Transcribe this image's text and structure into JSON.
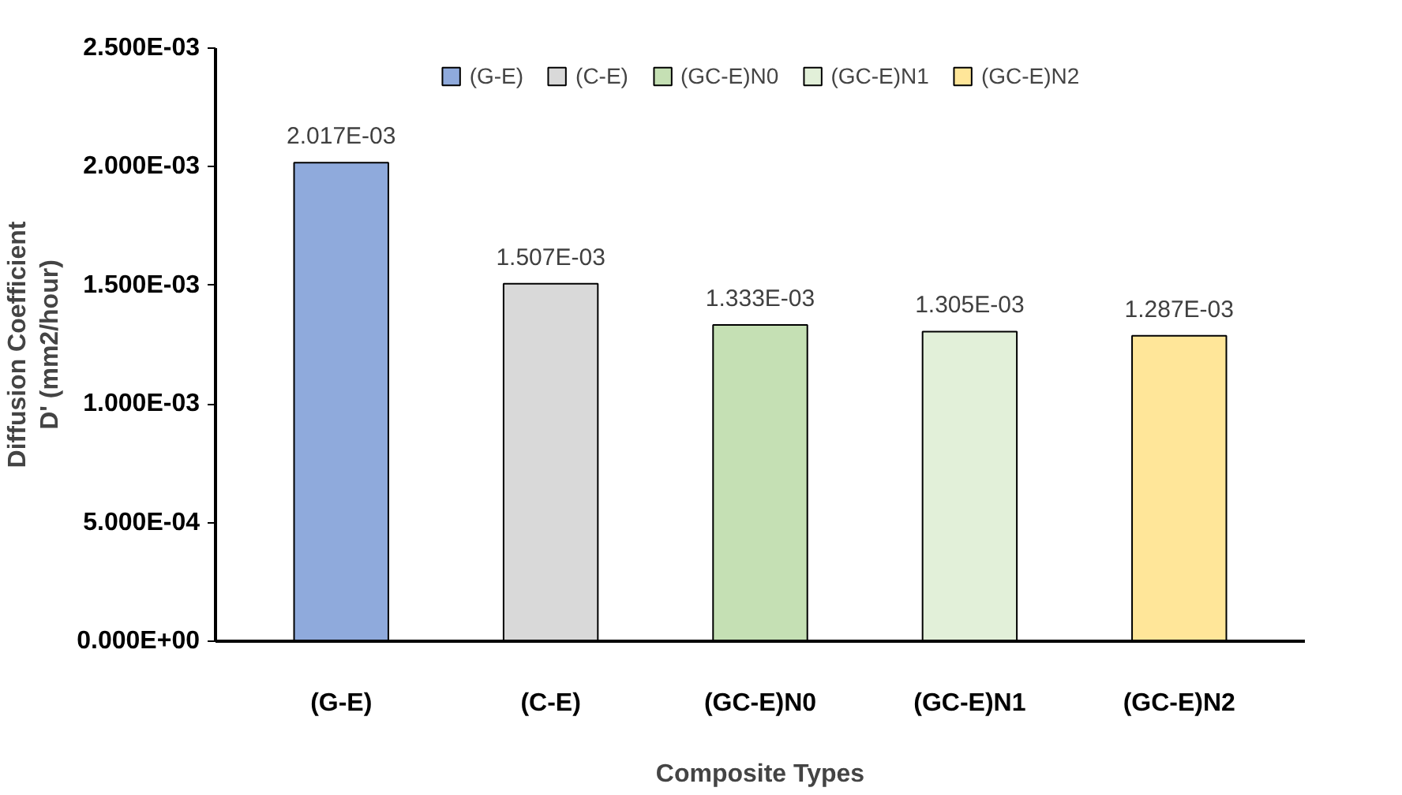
{
  "chart_data": {
    "type": "bar",
    "stacked": true,
    "categories": [
      "(G-E)",
      "(C-E)",
      "(GC-E)N0",
      "(GC-E)N1",
      "(GC-E)N2"
    ],
    "series": [
      {
        "name": "(G-E)",
        "color": "#8faadc",
        "values": [
          0.002017,
          null,
          null,
          null,
          null
        ],
        "value_labels": [
          "2.017E-03",
          null,
          null,
          null,
          null
        ]
      },
      {
        "name": "(C-E)",
        "color": "#d9d9d9",
        "values": [
          null,
          0.001507,
          null,
          null,
          null
        ],
        "value_labels": [
          null,
          "1.507E-03",
          null,
          null,
          null
        ]
      },
      {
        "name": "(GC-E)N0",
        "color": "#c5e0b4",
        "values": [
          null,
          null,
          0.001333,
          null,
          null
        ],
        "value_labels": [
          null,
          null,
          "1.333E-03",
          null,
          null
        ]
      },
      {
        "name": "(GC-E)N1",
        "color": "#e2f0d9",
        "values": [
          null,
          null,
          null,
          0.001305,
          null
        ],
        "value_labels": [
          null,
          null,
          null,
          "1.305E-03",
          null
        ]
      },
      {
        "name": "(GC-E)N2",
        "color": "#ffe699",
        "values": [
          null,
          null,
          null,
          null,
          0.001287
        ],
        "value_labels": [
          null,
          null,
          null,
          null,
          "1.287E-03"
        ]
      }
    ],
    "xlabel": "Composite Types",
    "ylabel": "Diffusion Coefficient\nD' (mm2/hour)",
    "ylim": [
      0,
      0.0025
    ],
    "yticks": [
      {
        "value": 0,
        "label": "0.000E+00"
      },
      {
        "value": 0.0005,
        "label": "5.000E-04"
      },
      {
        "value": 0.001,
        "label": "1.000E-03"
      },
      {
        "value": 0.0015,
        "label": "1.500E-03"
      },
      {
        "value": 0.002,
        "label": "2.000E-03"
      },
      {
        "value": 0.0025,
        "label": "2.500E-03"
      }
    ],
    "grid": false,
    "legend": "top"
  }
}
